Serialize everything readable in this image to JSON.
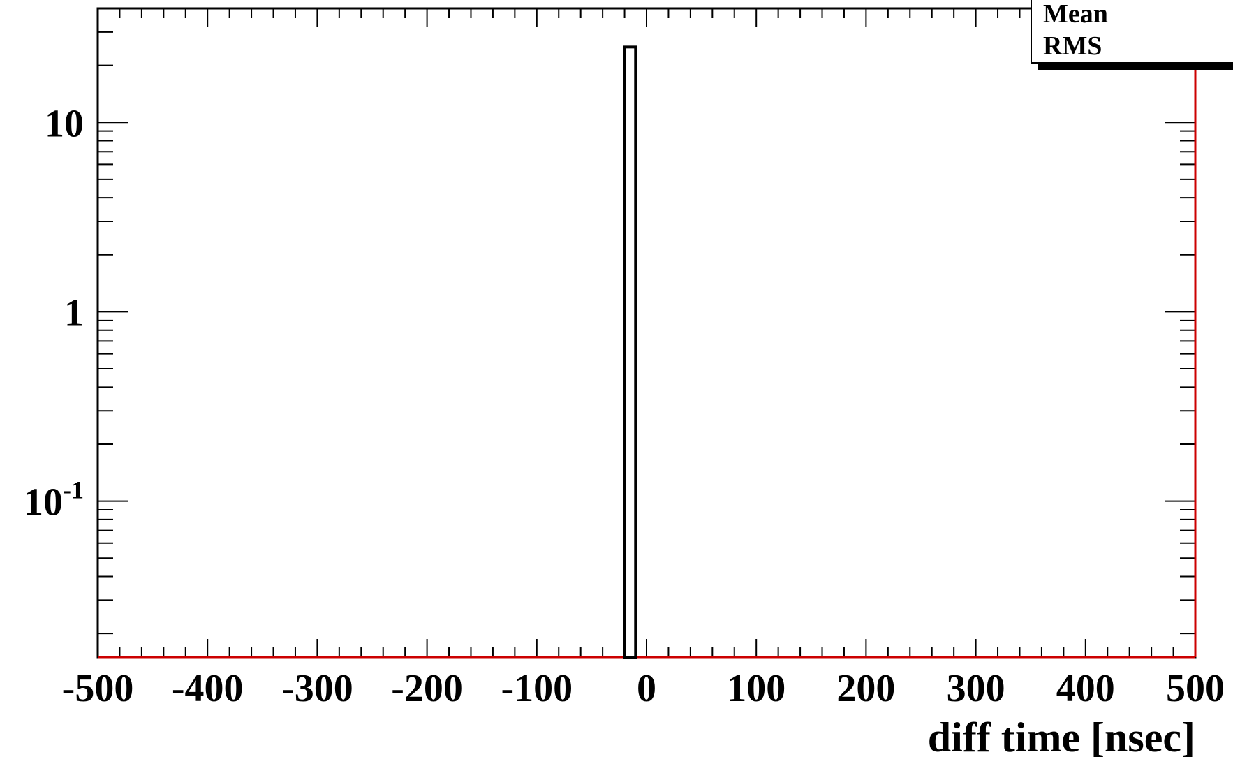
{
  "chart_data": {
    "type": "bar",
    "xlabel": "diff time [nsec]",
    "ylabel": "",
    "x_scale": "linear",
    "y_scale": "log",
    "xlim": [
      -500,
      500
    ],
    "ylim": [
      0.015,
      40
    ],
    "x_ticks": [
      "-500",
      "-400",
      "-300",
      "-200",
      "-100",
      "0",
      "100",
      "200",
      "300",
      "400",
      "500"
    ],
    "y_ticks": [
      {
        "value": 10,
        "base": "10",
        "exp": ""
      },
      {
        "value": 1,
        "base": "1",
        "exp": ""
      },
      {
        "value": 0.1,
        "base": "10",
        "exp": "-1"
      }
    ],
    "bins": [
      {
        "x_low": -20,
        "x_high": -10,
        "value": 25
      }
    ],
    "stats_box": {
      "labels": [
        "Mean",
        "RMS"
      ]
    },
    "grid": false,
    "colors": {
      "histogram": "#000000",
      "zero_line": "#cc0000",
      "frame": "#000000"
    }
  }
}
